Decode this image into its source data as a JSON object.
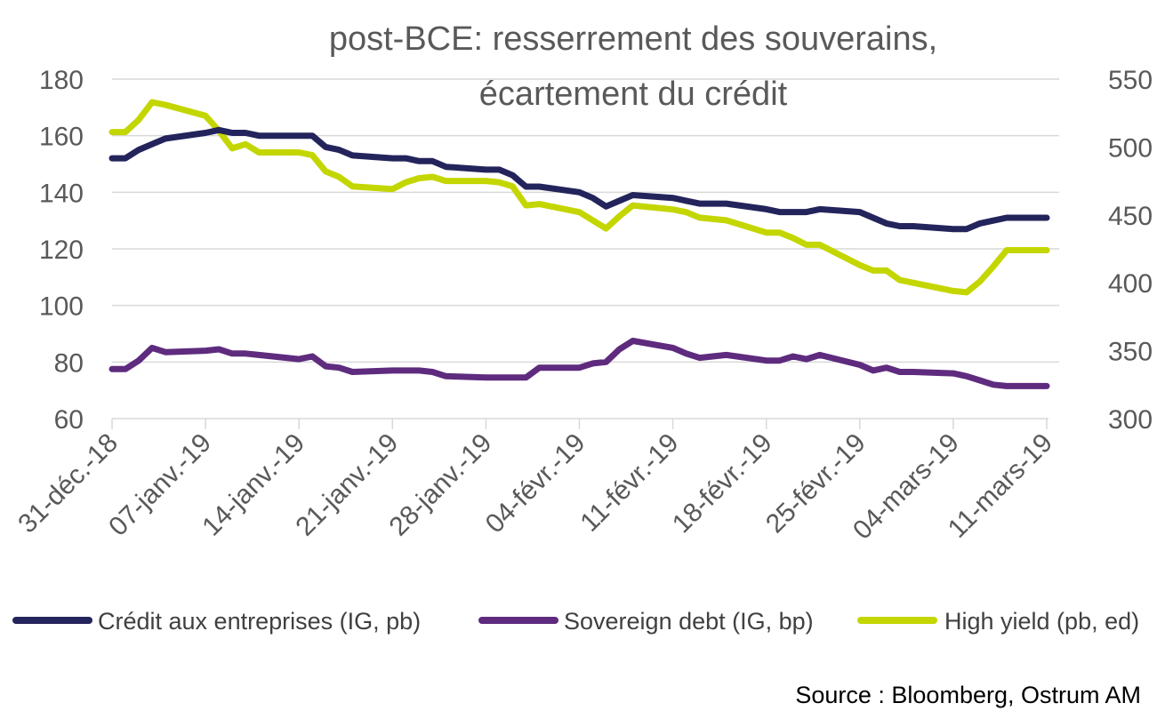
{
  "chart_data": {
    "type": "line",
    "title": "post-BCE: resserrement des souverains, écartement du crédit",
    "title_lines": [
      "post-BCE: resserrement des souverains,",
      "écartement du crédit"
    ],
    "source": "Source : Bloomberg, Ostrum AM",
    "x_labels": [
      "31-déc.-18",
      "07-janv.-19",
      "14-janv.-19",
      "21-janv.-19",
      "28-janv.-19",
      "04-févr.-19",
      "11-févr.-19",
      "18-févr.-19",
      "25-févr.-19",
      "04-mars-19",
      "11-mars-19"
    ],
    "x_range_days": [
      0,
      70
    ],
    "y_left": {
      "ylim": [
        60,
        180
      ],
      "ticks": [
        60,
        80,
        100,
        120,
        140,
        160,
        180
      ]
    },
    "y_right": {
      "ylim": [
        300,
        550
      ],
      "ticks": [
        300,
        350,
        400,
        450,
        500,
        550
      ]
    },
    "grid": true,
    "legend_position": "bottom",
    "series": [
      {
        "name": "Crédit aux entreprises (IG, pb)",
        "color": "#24245c",
        "axis": "left",
        "points": [
          [
            0,
            152
          ],
          [
            1,
            152
          ],
          [
            2,
            155
          ],
          [
            3,
            157
          ],
          [
            4,
            159
          ],
          [
            7,
            161
          ],
          [
            8,
            162
          ],
          [
            9,
            161
          ],
          [
            10,
            161
          ],
          [
            11,
            160
          ],
          [
            14,
            160
          ],
          [
            15,
            160
          ],
          [
            16,
            156
          ],
          [
            17,
            155
          ],
          [
            18,
            153
          ],
          [
            21,
            152
          ],
          [
            22,
            152
          ],
          [
            23,
            151
          ],
          [
            24,
            151
          ],
          [
            25,
            149
          ],
          [
            28,
            148
          ],
          [
            29,
            148
          ],
          [
            30,
            146
          ],
          [
            31,
            142
          ],
          [
            32,
            142
          ],
          [
            35,
            140
          ],
          [
            36,
            138
          ],
          [
            37,
            135
          ],
          [
            38,
            137
          ],
          [
            39,
            139
          ],
          [
            42,
            138
          ],
          [
            43,
            137
          ],
          [
            44,
            136
          ],
          [
            45,
            136
          ],
          [
            46,
            136
          ],
          [
            49,
            134
          ],
          [
            50,
            133
          ],
          [
            51,
            133
          ],
          [
            52,
            133
          ],
          [
            53,
            134
          ],
          [
            56,
            133
          ],
          [
            57,
            131
          ],
          [
            58,
            129
          ],
          [
            59,
            128
          ],
          [
            60,
            128
          ],
          [
            63,
            127
          ],
          [
            64,
            127
          ],
          [
            65,
            129
          ],
          [
            66,
            130
          ],
          [
            67,
            131
          ],
          [
            70,
            131
          ]
        ]
      },
      {
        "name": "Sovereign debt (IG, bp)",
        "color": "#5e2b7e",
        "axis": "left",
        "points": [
          [
            0,
            77.5
          ],
          [
            1,
            77.5
          ],
          [
            2,
            80.5
          ],
          [
            3,
            85
          ],
          [
            4,
            83.5
          ],
          [
            7,
            84
          ],
          [
            8,
            84.5
          ],
          [
            9,
            83
          ],
          [
            10,
            83
          ],
          [
            11,
            82.5
          ],
          [
            14,
            81
          ],
          [
            15,
            82
          ],
          [
            16,
            78.5
          ],
          [
            17,
            78
          ],
          [
            18,
            76.5
          ],
          [
            21,
            77
          ],
          [
            22,
            77
          ],
          [
            23,
            77
          ],
          [
            24,
            76.5
          ],
          [
            25,
            75
          ],
          [
            28,
            74.5
          ],
          [
            29,
            74.5
          ],
          [
            30,
            74.5
          ],
          [
            31,
            74.5
          ],
          [
            32,
            78
          ],
          [
            35,
            78
          ],
          [
            36,
            79.5
          ],
          [
            37,
            80
          ],
          [
            38,
            84.5
          ],
          [
            39,
            87.5
          ],
          [
            42,
            85
          ],
          [
            43,
            83
          ],
          [
            44,
            81.5
          ],
          [
            45,
            82
          ],
          [
            46,
            82.5
          ],
          [
            49,
            80.5
          ],
          [
            50,
            80.5
          ],
          [
            51,
            82
          ],
          [
            52,
            81
          ],
          [
            53,
            82.5
          ],
          [
            56,
            79
          ],
          [
            57,
            77
          ],
          [
            58,
            78
          ],
          [
            59,
            76.5
          ],
          [
            60,
            76.5
          ],
          [
            63,
            76
          ],
          [
            64,
            75
          ],
          [
            65,
            73.5
          ],
          [
            66,
            72
          ],
          [
            67,
            71.5
          ],
          [
            70,
            71.5
          ]
        ]
      },
      {
        "name": "High yield (pb, ed)",
        "color": "#c4d600",
        "axis": "right",
        "points": [
          [
            0,
            511
          ],
          [
            1,
            511
          ],
          [
            2,
            520
          ],
          [
            3,
            533
          ],
          [
            4,
            531
          ],
          [
            7,
            523
          ],
          [
            8,
            512
          ],
          [
            9,
            499
          ],
          [
            10,
            502
          ],
          [
            11,
            496
          ],
          [
            14,
            496
          ],
          [
            15,
            494
          ],
          [
            16,
            482
          ],
          [
            17,
            478
          ],
          [
            18,
            471
          ],
          [
            21,
            469
          ],
          [
            22,
            474
          ],
          [
            23,
            477
          ],
          [
            24,
            478
          ],
          [
            25,
            475
          ],
          [
            28,
            475
          ],
          [
            29,
            474
          ],
          [
            30,
            471
          ],
          [
            31,
            457
          ],
          [
            32,
            458
          ],
          [
            35,
            452
          ],
          [
            36,
            446
          ],
          [
            37,
            440
          ],
          [
            38,
            449
          ],
          [
            39,
            457
          ],
          [
            42,
            454
          ],
          [
            43,
            452
          ],
          [
            44,
            448
          ],
          [
            45,
            447
          ],
          [
            46,
            446
          ],
          [
            49,
            437
          ],
          [
            50,
            437
          ],
          [
            51,
            433
          ],
          [
            52,
            428
          ],
          [
            53,
            428
          ],
          [
            56,
            413
          ],
          [
            57,
            409
          ],
          [
            58,
            409
          ],
          [
            59,
            402
          ],
          [
            60,
            400
          ],
          [
            63,
            394
          ],
          [
            64,
            393
          ],
          [
            65,
            401
          ],
          [
            66,
            412
          ],
          [
            67,
            424
          ],
          [
            70,
            424
          ]
        ]
      }
    ]
  }
}
